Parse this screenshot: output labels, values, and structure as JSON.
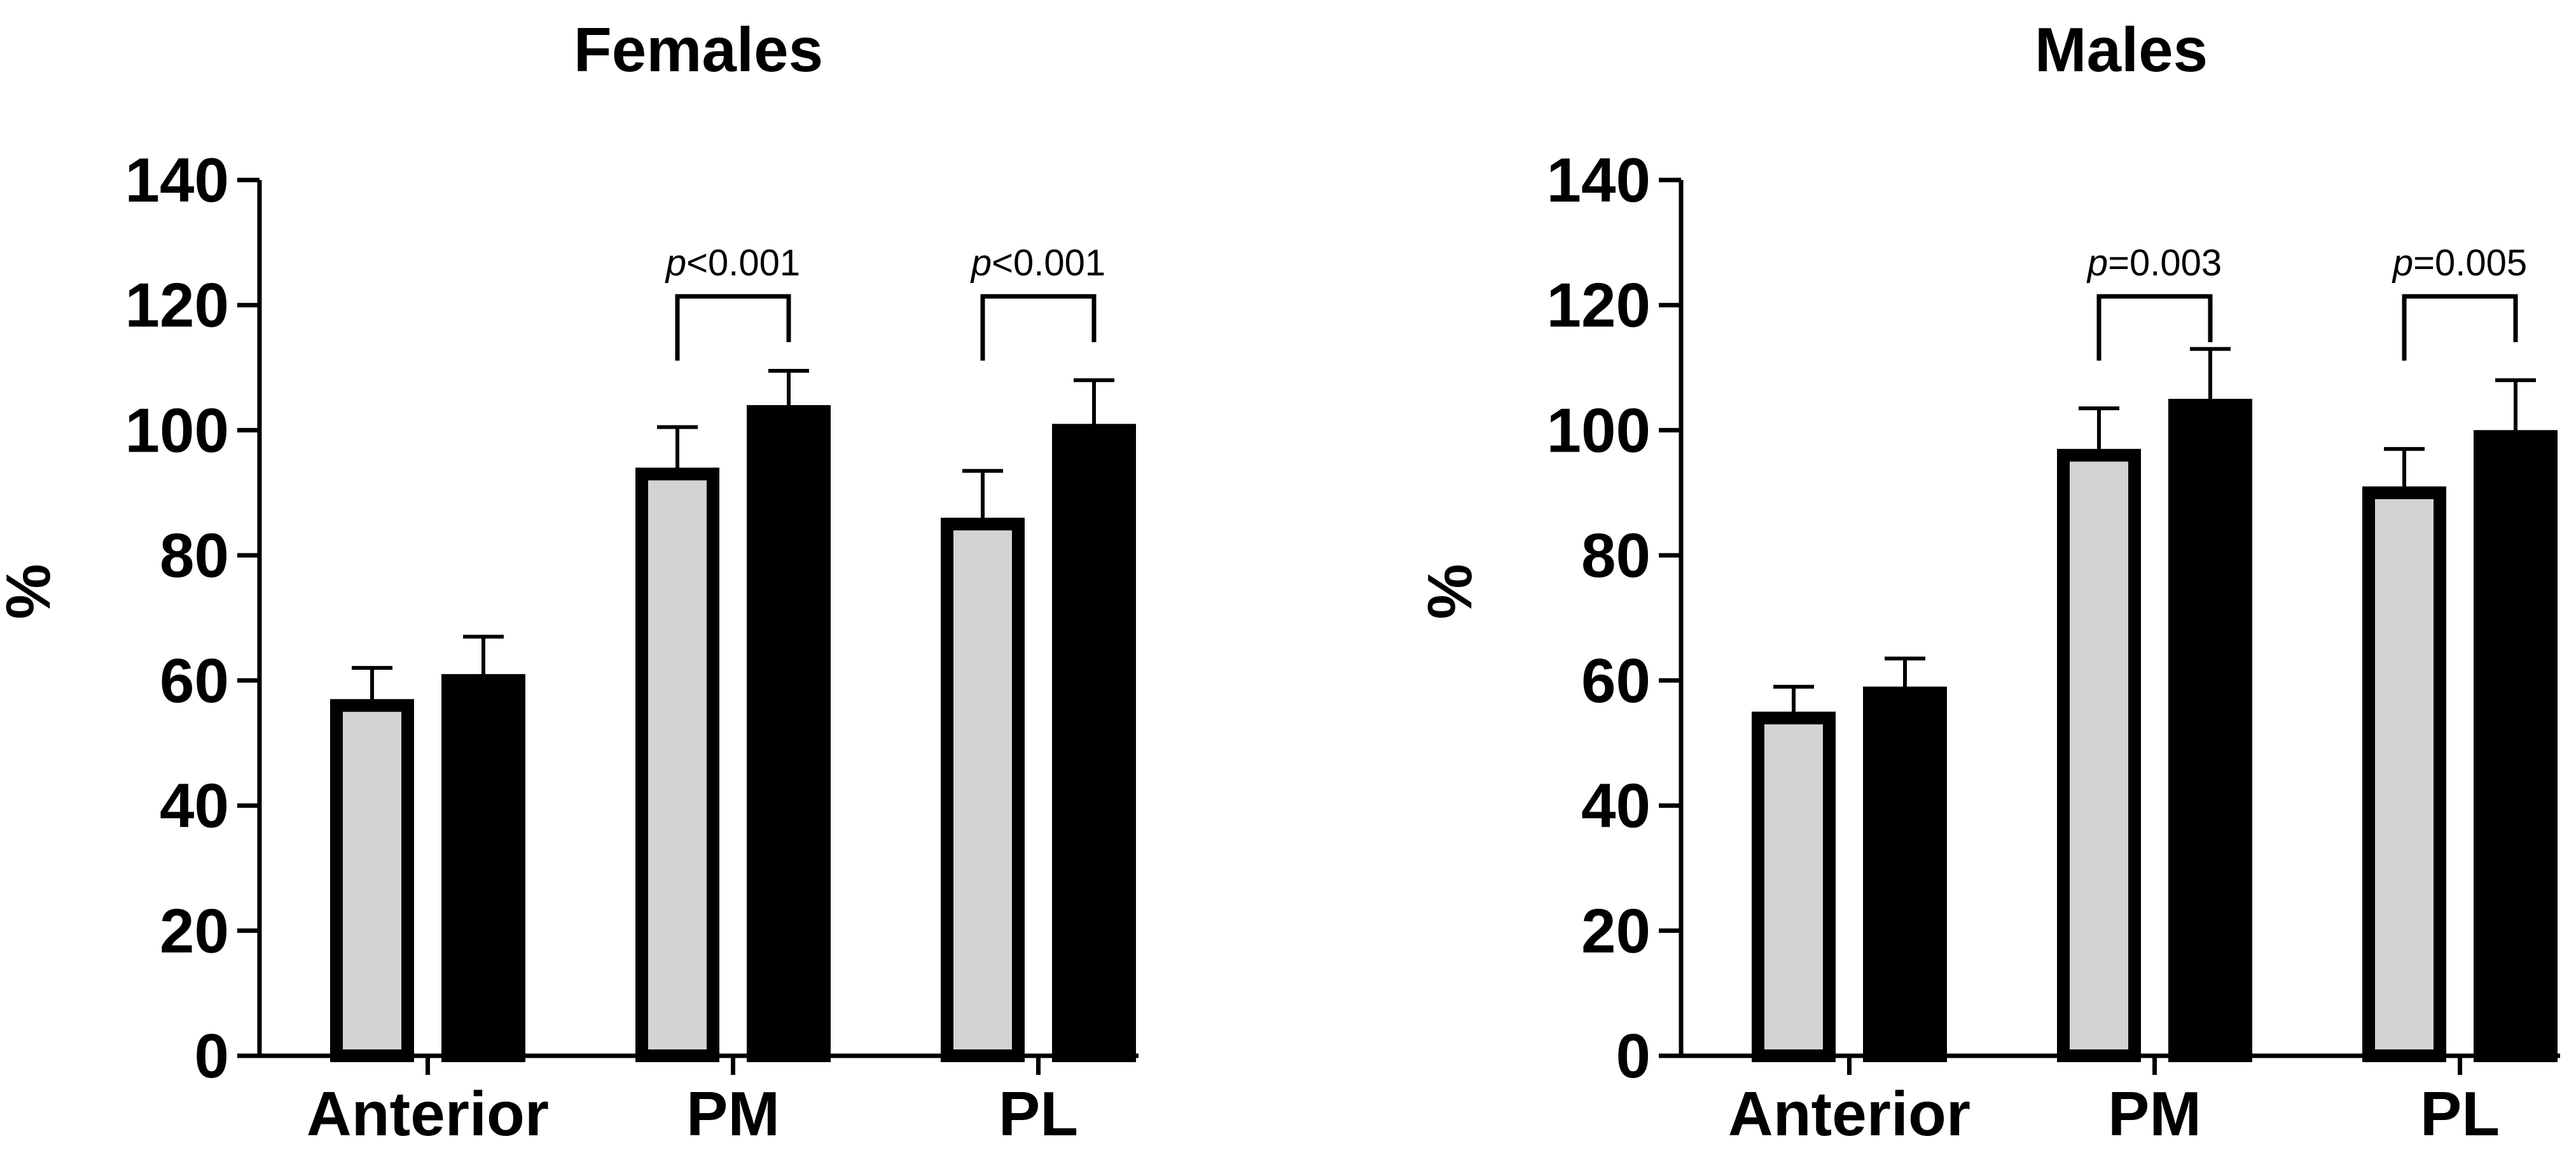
{
  "chart_data": [
    {
      "type": "bar",
      "title": "Females",
      "xlabel": "",
      "ylabel": "%",
      "ylim": [
        0,
        140
      ],
      "yticks": [
        0,
        20,
        40,
        60,
        80,
        100,
        120,
        140
      ],
      "categories": [
        "Anterior",
        "PM",
        "PL"
      ],
      "series": [
        {
          "name": "light",
          "fill": "#d3d3d3",
          "values": [
            56,
            93,
            85
          ],
          "errors": [
            6,
            7.5,
            8.5
          ]
        },
        {
          "name": "dark",
          "fill": "#000000",
          "values": [
            60,
            103,
            100
          ],
          "errors": [
            7,
            6.5,
            8
          ]
        }
      ],
      "annotations": [
        {
          "category": "PM",
          "p_prefix": "p",
          "p_value": "<0.001"
        },
        {
          "category": "PL",
          "p_prefix": "p",
          "p_value": "<0.001"
        }
      ]
    },
    {
      "type": "bar",
      "title": "Males",
      "xlabel": "",
      "ylabel": "%",
      "ylim": [
        0,
        140
      ],
      "yticks": [
        0,
        20,
        40,
        60,
        80,
        100,
        120,
        140
      ],
      "categories": [
        "Anterior",
        "PM",
        "PL"
      ],
      "series": [
        {
          "name": "light",
          "fill": "#d3d3d3",
          "values": [
            54,
            96,
            90
          ],
          "errors": [
            5,
            7.5,
            7
          ]
        },
        {
          "name": "dark",
          "fill": "#000000",
          "values": [
            58,
            104,
            99
          ],
          "errors": [
            5.5,
            9,
            9
          ]
        }
      ],
      "annotations": [
        {
          "category": "PM",
          "p_prefix": "p",
          "p_value": "=0.003"
        },
        {
          "category": "PL",
          "p_prefix": "p",
          "p_value": "=0.005"
        }
      ]
    }
  ]
}
